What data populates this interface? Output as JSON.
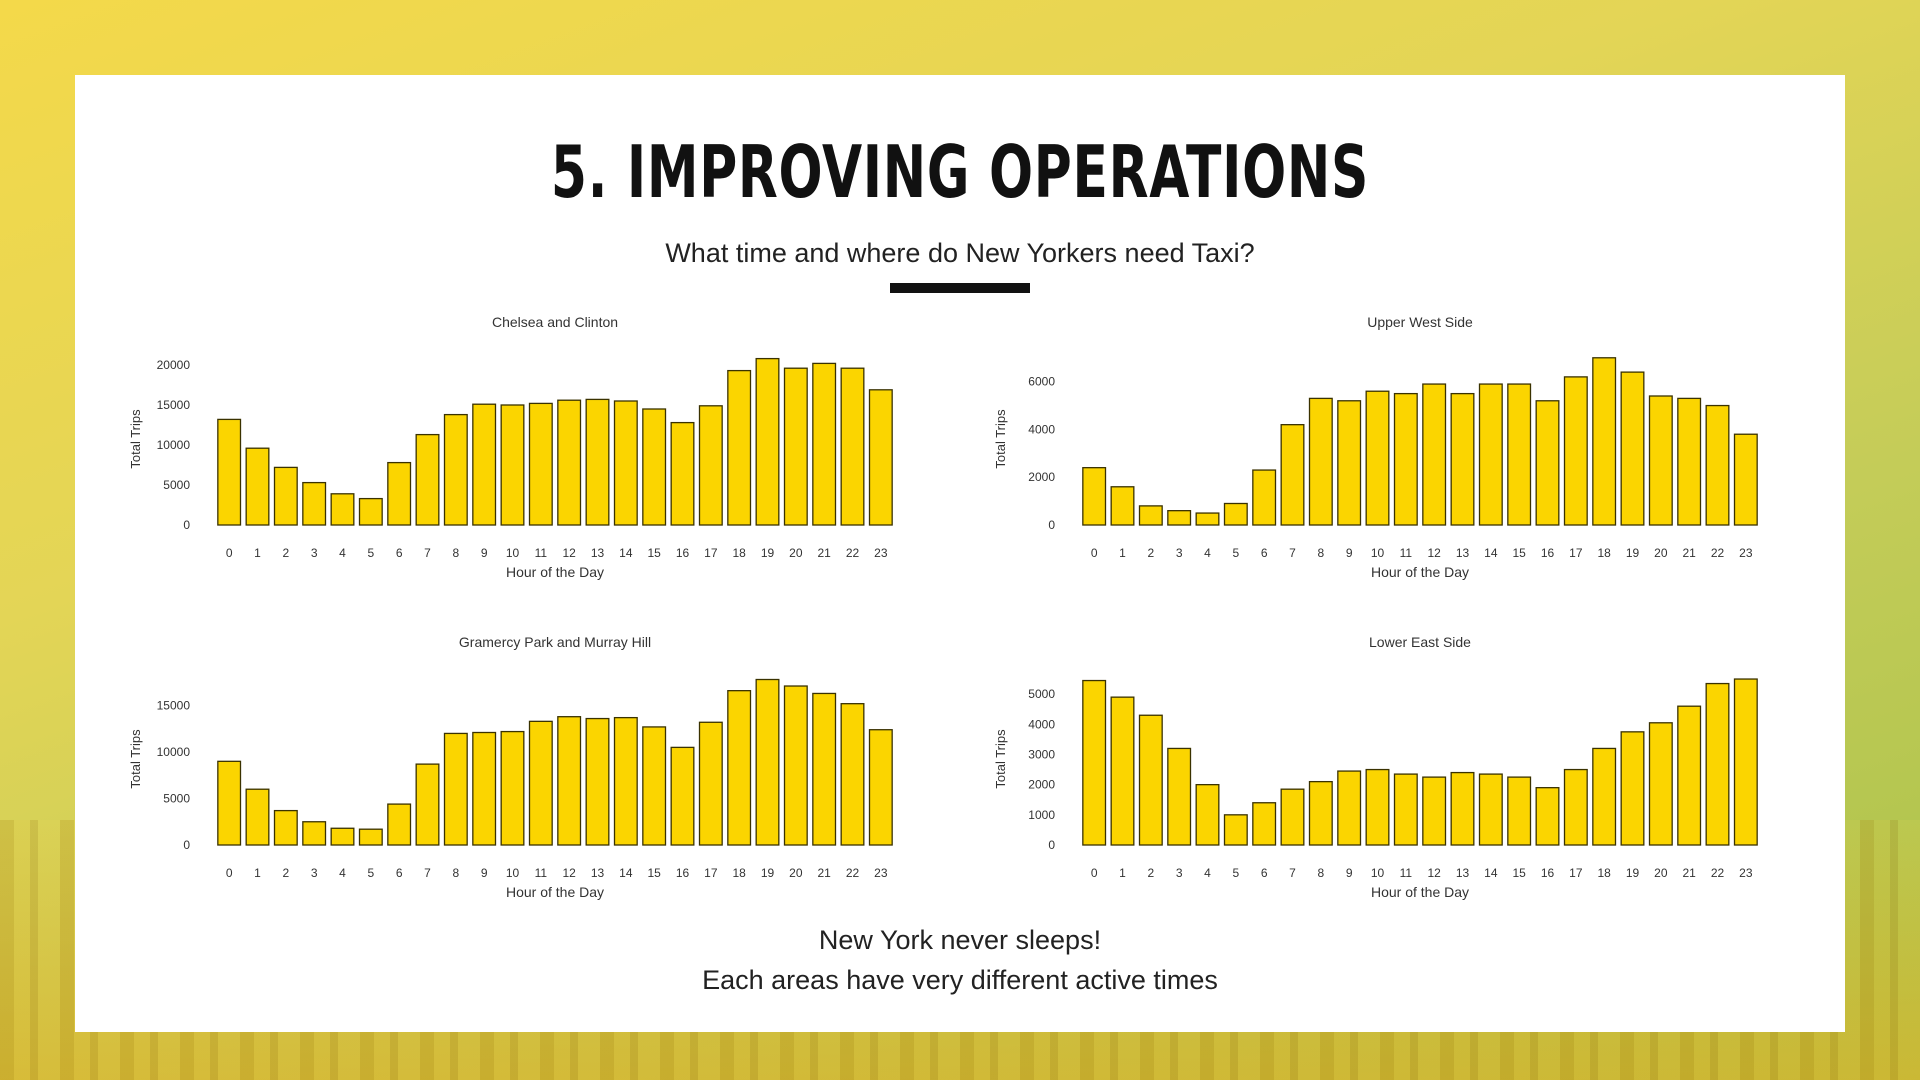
{
  "slide": {
    "title": "5. IMPROVING OPERATIONS",
    "subtitle": "What time and where do New Yorkers need Taxi?",
    "footer_line1": "New York never sleeps!",
    "footer_line2": "Each areas have very different active times"
  },
  "colors": {
    "bar_fill": "#fbd500",
    "bar_stroke": "#3a3200"
  },
  "chart_data": [
    {
      "type": "bar",
      "title": "Chelsea and Clinton",
      "xlabel": "Hour of the Day",
      "ylabel": "Total Trips",
      "categories": [
        "0",
        "1",
        "2",
        "3",
        "4",
        "5",
        "6",
        "7",
        "8",
        "9",
        "10",
        "11",
        "12",
        "13",
        "14",
        "15",
        "16",
        "17",
        "18",
        "19",
        "20",
        "21",
        "22",
        "23"
      ],
      "values": [
        13200,
        9600,
        7200,
        5300,
        3900,
        3300,
        7800,
        11300,
        13800,
        15100,
        15000,
        15200,
        15600,
        15700,
        15500,
        14500,
        12800,
        14900,
        19300,
        20800,
        19600,
        20200,
        19600,
        16900
      ],
      "yticks": [
        0,
        5000,
        10000,
        15000,
        20000
      ],
      "ylim": [
        0,
        21500
      ],
      "grid": false
    },
    {
      "type": "bar",
      "title": "Upper West Side",
      "xlabel": "Hour of the Day",
      "ylabel": "Total Trips",
      "categories": [
        "0",
        "1",
        "2",
        "3",
        "4",
        "5",
        "6",
        "7",
        "8",
        "9",
        "10",
        "11",
        "12",
        "13",
        "14",
        "15",
        "16",
        "17",
        "18",
        "19",
        "20",
        "21",
        "22",
        "23"
      ],
      "values": [
        2400,
        1600,
        800,
        600,
        500,
        900,
        2300,
        4200,
        5300,
        5200,
        5600,
        5500,
        5900,
        5500,
        5900,
        5900,
        5200,
        6200,
        7000,
        6400,
        5400,
        5300,
        5000,
        3800
      ],
      "yticks": [
        0,
        2000,
        4000,
        6000
      ],
      "ylim": [
        0,
        7200
      ],
      "grid": false
    },
    {
      "type": "bar",
      "title": "Gramercy Park and Murray Hill",
      "xlabel": "Hour of the Day",
      "ylabel": "Total Trips",
      "categories": [
        "0",
        "1",
        "2",
        "3",
        "4",
        "5",
        "6",
        "7",
        "8",
        "9",
        "10",
        "11",
        "12",
        "13",
        "14",
        "15",
        "16",
        "17",
        "18",
        "19",
        "20",
        "21",
        "22",
        "23"
      ],
      "values": [
        9000,
        6000,
        3700,
        2500,
        1800,
        1700,
        4400,
        8700,
        12000,
        12100,
        12200,
        13300,
        13800,
        13600,
        13700,
        12700,
        10500,
        13200,
        16600,
        17800,
        17100,
        16300,
        15200,
        12400
      ],
      "yticks": [
        0,
        5000,
        10000,
        15000
      ],
      "ylim": [
        0,
        18500
      ],
      "grid": false
    },
    {
      "type": "bar",
      "title": "Lower East Side",
      "xlabel": "Hour of the Day",
      "ylabel": "Total Trips",
      "categories": [
        "0",
        "1",
        "2",
        "3",
        "4",
        "5",
        "6",
        "7",
        "8",
        "9",
        "10",
        "11",
        "12",
        "13",
        "14",
        "15",
        "16",
        "17",
        "18",
        "19",
        "20",
        "21",
        "22",
        "23"
      ],
      "values": [
        5450,
        4900,
        4300,
        3200,
        2000,
        1000,
        1400,
        1850,
        2100,
        2450,
        2500,
        2350,
        2250,
        2400,
        2350,
        2250,
        1900,
        2500,
        3200,
        3750,
        4050,
        4600,
        5350,
        5500
      ],
      "yticks": [
        0,
        1000,
        2000,
        3000,
        4000,
        5000
      ],
      "ylim": [
        0,
        5700
      ],
      "grid": false
    }
  ]
}
